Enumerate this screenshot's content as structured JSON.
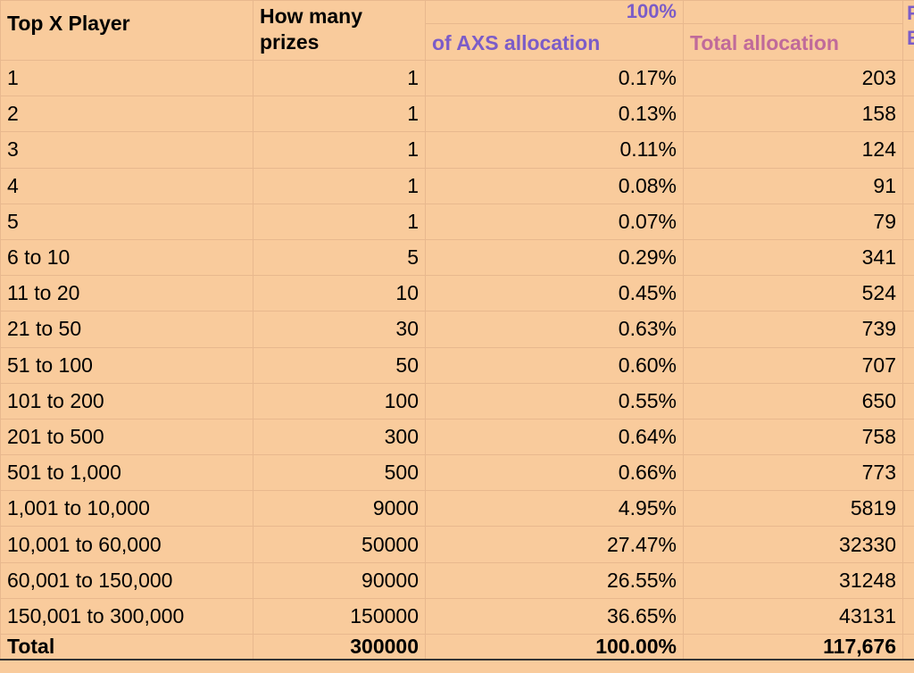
{
  "header": {
    "col1": "Top X Player",
    "col2_line1": "How many",
    "col2_line2": "prizes",
    "col3_top": "100%",
    "col3_bottom": "of AXS allocation",
    "col4": "Total allocation",
    "col5_line1": "P",
    "col5_line2": "E"
  },
  "rows": [
    {
      "rank": "1",
      "prizes": "1",
      "pct": "0.17%",
      "total": "203"
    },
    {
      "rank": "2",
      "prizes": "1",
      "pct": "0.13%",
      "total": "158"
    },
    {
      "rank": "3",
      "prizes": "1",
      "pct": "0.11%",
      "total": "124"
    },
    {
      "rank": "4",
      "prizes": "1",
      "pct": "0.08%",
      "total": "91"
    },
    {
      "rank": "5",
      "prizes": "1",
      "pct": "0.07%",
      "total": "79"
    },
    {
      "rank": "6 to 10",
      "prizes": "5",
      "pct": "0.29%",
      "total": "341"
    },
    {
      "rank": "11 to 20",
      "prizes": "10",
      "pct": "0.45%",
      "total": "524"
    },
    {
      "rank": "21 to 50",
      "prizes": "30",
      "pct": "0.63%",
      "total": "739"
    },
    {
      "rank": "51 to 100",
      "prizes": "50",
      "pct": "0.60%",
      "total": "707"
    },
    {
      "rank": "101 to 200",
      "prizes": "100",
      "pct": "0.55%",
      "total": "650"
    },
    {
      "rank": "201 to 500",
      "prizes": "300",
      "pct": "0.64%",
      "total": "758"
    },
    {
      "rank": "501 to 1,000",
      "prizes": "500",
      "pct": "0.66%",
      "total": "773"
    },
    {
      "rank": "1,001 to 10,000",
      "prizes": "9000",
      "pct": "4.95%",
      "total": "5819"
    },
    {
      "rank": "10,001 to 60,000",
      "prizes": "50000",
      "pct": "27.47%",
      "total": "32330"
    },
    {
      "rank": "60,001 to 150,000",
      "prizes": "90000",
      "pct": "26.55%",
      "total": "31248"
    },
    {
      "rank": "150,001 to 300,000",
      "prizes": "150000",
      "pct": "36.65%",
      "total": "43131"
    }
  ],
  "total_row": {
    "label": "Total",
    "prizes": "300000",
    "pct": "100.00%",
    "total": "117,676"
  },
  "colors": {
    "background": "#f9cb9c",
    "header_purple": "#7b5cc8",
    "header_pink": "#c06a9a"
  }
}
